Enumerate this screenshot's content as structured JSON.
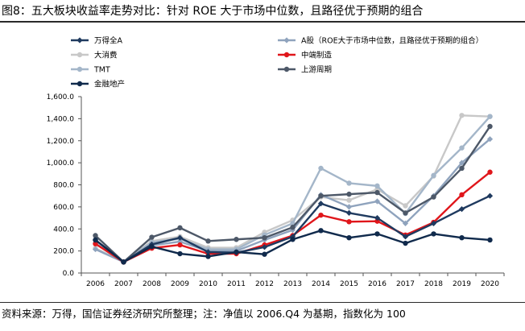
{
  "title": "图8：五大板块收益率走势对比：针对 ROE 大于市场中位数，且路径优于预期的组合",
  "source": "资料来源：万得，国信证券经济研究所整理；注：净值以 2006.Q4 为基期，指数化为 100",
  "chart_data": {
    "type": "line",
    "x": [
      "2006",
      "2007",
      "2008",
      "2009",
      "2010",
      "2011",
      "2012",
      "2013",
      "2014",
      "2015",
      "2016",
      "2017",
      "2018",
      "2019",
      "2020"
    ],
    "ylim": [
      0,
      1600
    ],
    "yticks": [
      0,
      200,
      400,
      600,
      800,
      1000,
      1200,
      1400,
      1600
    ],
    "ytick_labels": [
      "0.0",
      "200.0",
      "400.0",
      "600.0",
      "800.0",
      "1,000.0",
      "1,200.0",
      "1,400.0",
      "1,600.0"
    ],
    "grid": false,
    "legend_position": "top",
    "series": [
      {
        "name": "万得全A",
        "color": "#1f3a5f",
        "marker": "diamond",
        "values": [
          300,
          100,
          260,
          320,
          190,
          185,
          235,
          330,
          630,
          545,
          500,
          330,
          450,
          580,
          700
        ]
      },
      {
        "name": "A股（ROE大于市场中位数，且路径优于预期的组合）",
        "color": "#8fa3bd",
        "marker": "diamond",
        "values": [
          215,
          100,
          250,
          285,
          200,
          200,
          300,
          390,
          710,
          600,
          650,
          450,
          700,
          1000,
          1215
        ]
      },
      {
        "name": "大消费",
        "color": "#c8c8c8",
        "marker": "circle",
        "values": [
          225,
          100,
          290,
          330,
          230,
          230,
          370,
          480,
          690,
          660,
          760,
          610,
          880,
          1430,
          1420
        ]
      },
      {
        "name": "中端制造",
        "color": "#e0161b",
        "marker": "circle",
        "values": [
          265,
          100,
          225,
          255,
          175,
          175,
          255,
          340,
          525,
          465,
          470,
          345,
          460,
          710,
          915
        ]
      },
      {
        "name": "TMT",
        "color": "#a4b6c9",
        "marker": "circle",
        "values": [
          270,
          100,
          280,
          310,
          215,
          215,
          345,
          450,
          950,
          815,
          790,
          540,
          885,
          1135,
          1420
        ]
      },
      {
        "name": "上游周期",
        "color": "#4d5868",
        "marker": "circle",
        "values": [
          340,
          100,
          325,
          410,
          290,
          305,
          320,
          415,
          700,
          715,
          730,
          545,
          690,
          950,
          1330
        ]
      },
      {
        "name": "金融地产",
        "color": "#102a4c",
        "marker": "circle",
        "values": [
          300,
          100,
          240,
          175,
          150,
          190,
          170,
          305,
          385,
          320,
          355,
          270,
          355,
          320,
          300
        ]
      }
    ]
  }
}
